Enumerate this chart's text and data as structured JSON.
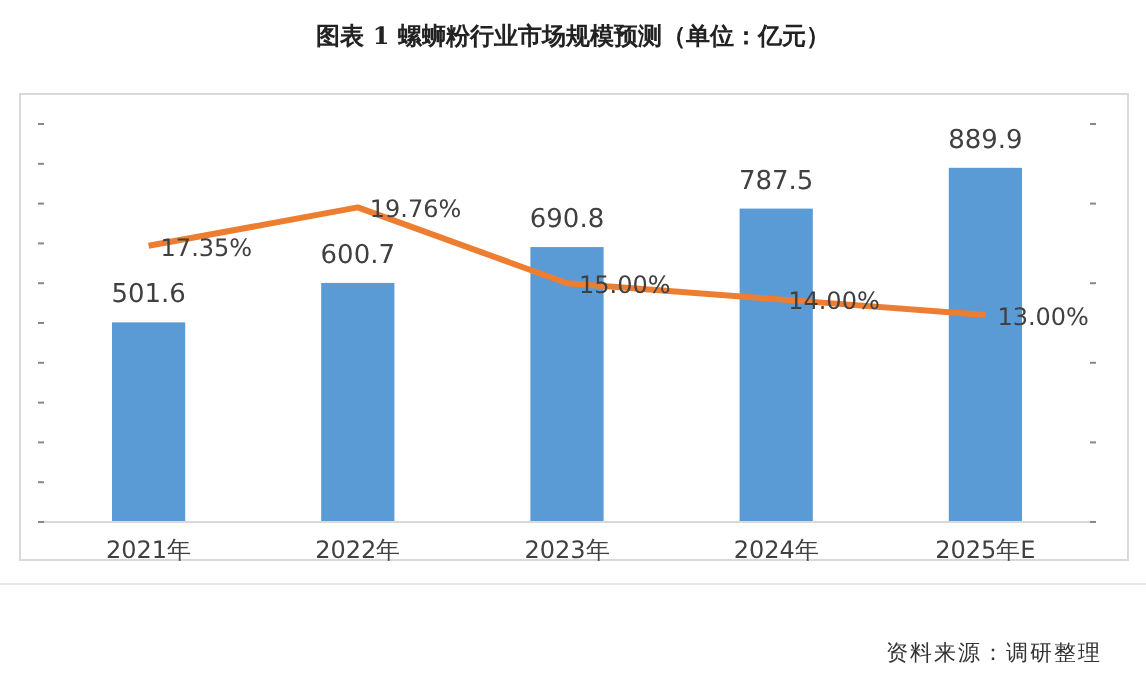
{
  "chart_data": {
    "type": "bar",
    "title": "图表 1 螺蛳粉行业市场规模预测（单位：亿元）",
    "categories": [
      "2021年",
      "2022年",
      "2023年",
      "2024年",
      "2025年E"
    ],
    "series": [
      {
        "color": "#5b9bd5",
        "values": [
          501.6,
          600.7,
          690.8,
          787.5,
          889.9
        ],
        "value_labels": [
          "501.6",
          "600.7",
          "690.8",
          "787.5",
          "889.9"
        ]
      },
      {
        "type": "line",
        "axis": "y2",
        "color": "#ed7d31",
        "values": [
          17.35,
          19.76,
          15.0,
          14.0,
          13.0
        ],
        "value_labels": [
          "17.35%",
          "19.76%",
          "15.00%",
          "14.00%",
          "13.00%"
        ]
      }
    ],
    "yticks": [
      {
        "value": 0,
        "label": null
      },
      {
        "value": 100,
        "label": null
      },
      {
        "value": 200,
        "label": null
      },
      {
        "value": 300,
        "label": null
      },
      {
        "value": 400,
        "label": null
      },
      {
        "value": 500,
        "label": null
      },
      {
        "value": 600,
        "label": null
      },
      {
        "value": 700,
        "label": null
      },
      {
        "value": 800,
        "label": null
      },
      {
        "value": 900,
        "label": null
      },
      {
        "value": 1000,
        "label": null
      }
    ],
    "y2ticks": [
      {
        "value": 0,
        "label": null
      },
      {
        "value": 5,
        "label": null
      },
      {
        "value": 10,
        "label": null
      },
      {
        "value": 15,
        "label": null
      },
      {
        "value": 20,
        "label": null
      },
      {
        "value": 25,
        "label": null
      }
    ],
    "tick_labels": "x",
    "marker": "none",
    "annotations": [
      "资料来源：调研整理"
    ]
  }
}
